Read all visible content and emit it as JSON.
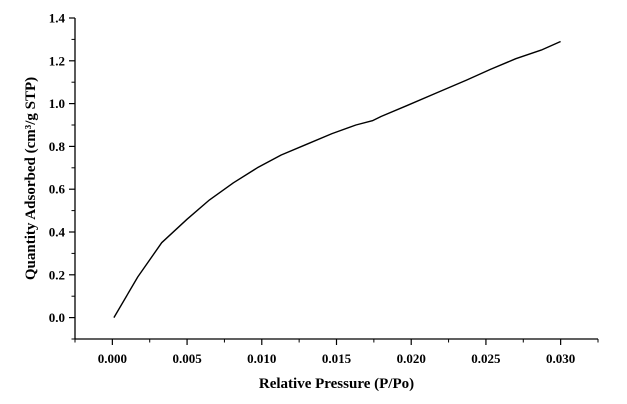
{
  "chart_data": {
    "type": "line",
    "title": "",
    "xlabel": "Relative Pressure (P/Po)",
    "ylabel": "Quantity Adsorbed (cm³/g STP)",
    "xlim": [
      -0.0025,
      0.0325
    ],
    "ylim": [
      -0.1,
      1.4
    ],
    "x_ticks": [
      0.0,
      0.005,
      0.01,
      0.015,
      0.02,
      0.025,
      0.03
    ],
    "x_tick_labels": [
      "0.000",
      "0.005",
      "0.010",
      "0.015",
      "0.020",
      "0.025",
      "0.030"
    ],
    "y_ticks": [
      0.0,
      0.2,
      0.4,
      0.6,
      0.8,
      1.0,
      1.2,
      1.4
    ],
    "y_tick_labels": [
      "0.0",
      "0.2",
      "0.4",
      "0.6",
      "0.8",
      "1.0",
      "1.2",
      "1.4"
    ],
    "grid": false,
    "legend": "none",
    "series": [
      {
        "color": "#000000",
        "x": [
          0.0001,
          0.0017,
          0.0033,
          0.005,
          0.0065,
          0.0081,
          0.0097,
          0.0113,
          0.013,
          0.0147,
          0.0163,
          0.0174,
          0.018,
          0.0197,
          0.0217,
          0.0237,
          0.0253,
          0.027,
          0.0287,
          0.03
        ],
        "y": [
          0.0,
          0.19,
          0.35,
          0.46,
          0.55,
          0.63,
          0.7,
          0.76,
          0.81,
          0.86,
          0.9,
          0.92,
          0.94,
          0.99,
          1.05,
          1.11,
          1.16,
          1.21,
          1.25,
          1.29
        ]
      }
    ]
  }
}
